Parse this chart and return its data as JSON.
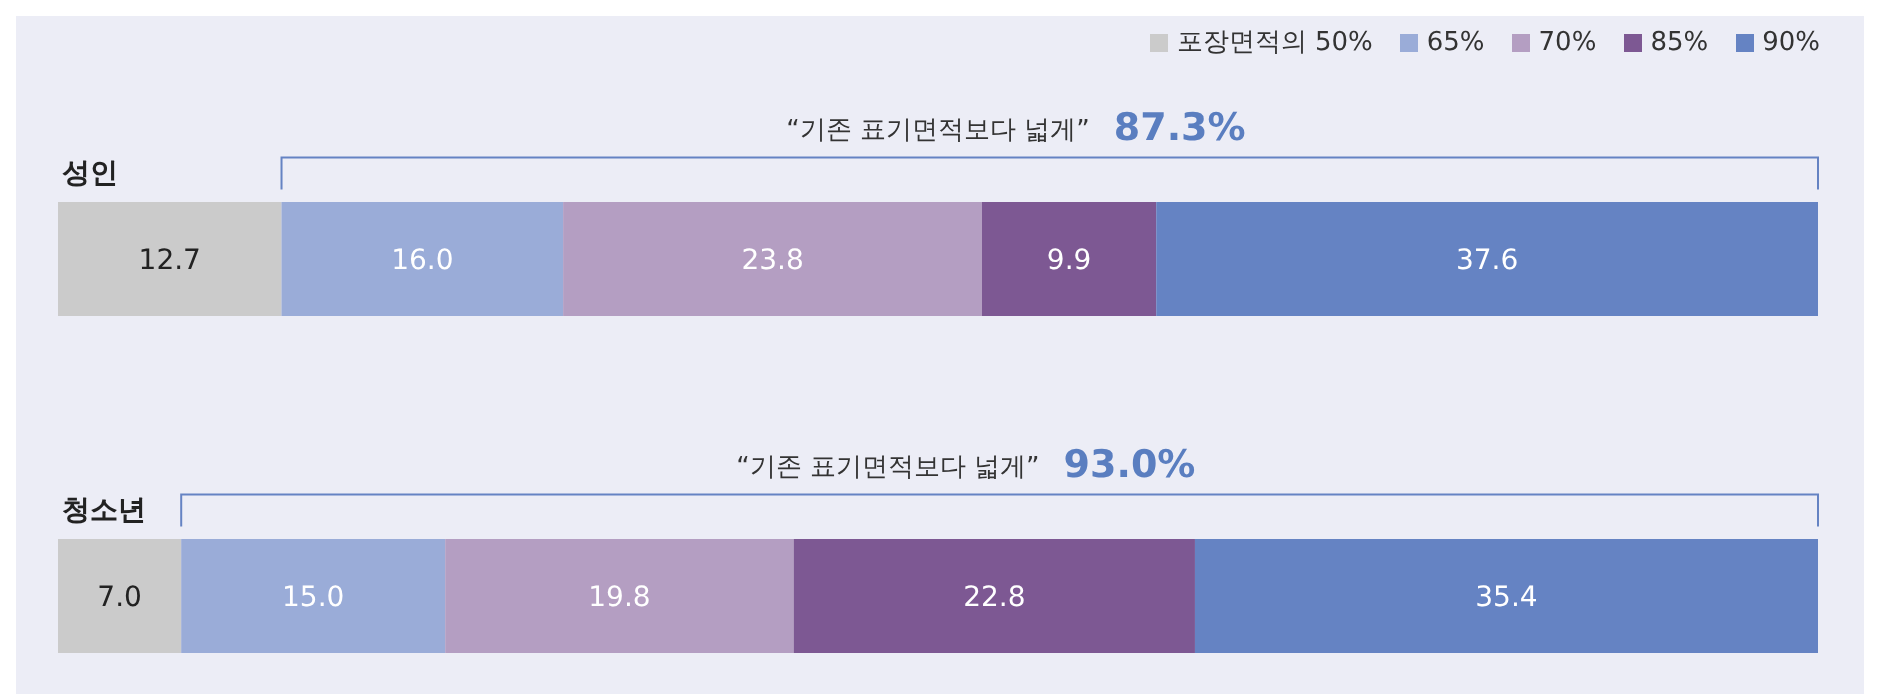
{
  "chart_data": {
    "type": "bar",
    "orientation": "horizontal",
    "stacked": true,
    "legend": "top right",
    "categories": [
      "성인",
      "청소년"
    ],
    "series": [
      {
        "name": "포장면적의 50%",
        "color": "#cbcbcb",
        "values": [
          12.7,
          7.0
        ],
        "value_labels": [
          "12.7",
          "7.0"
        ]
      },
      {
        "name": "65%",
        "color": "#9aacd8",
        "values": [
          16.0,
          15.0
        ],
        "value_labels": [
          "16.0",
          "15.0"
        ]
      },
      {
        "name": "70%",
        "color": "#b49ec2",
        "values": [
          23.8,
          19.8
        ],
        "value_labels": [
          "23.8",
          "19.8"
        ]
      },
      {
        "name": "85%",
        "color": "#7d5893",
        "values": [
          9.9,
          22.8
        ],
        "value_labels": [
          "9.9",
          "22.8"
        ]
      },
      {
        "name": "90%",
        "color": "#6583c3",
        "values": [
          37.6,
          35.4
        ],
        "value_labels": [
          "37.6",
          "35.4"
        ]
      }
    ],
    "annotations": [
      "“기존 표기면적보다 넓게”",
      "87.3%",
      "“기존 표기면적보다 넓게”",
      "93.0%"
    ]
  }
}
